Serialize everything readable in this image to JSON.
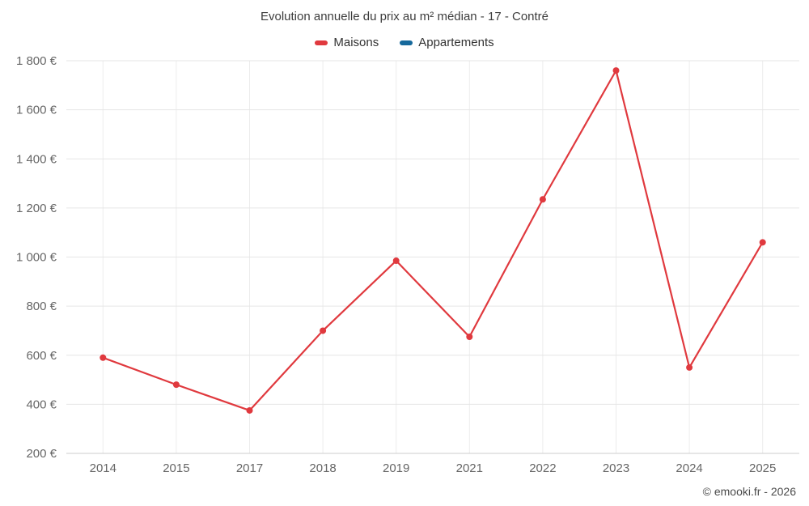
{
  "chart": {
    "title": "Evolution annuelle du prix au m² médian - 17 - Contré",
    "footer": "© emooki.fr - 2026"
  },
  "chart_data": {
    "type": "line",
    "title": "Evolution annuelle du prix au m² médian - 17 - Contré",
    "categories": [
      "2014",
      "2015",
      "2017",
      "2018",
      "2019",
      "2021",
      "2022",
      "2023",
      "2024",
      "2025"
    ],
    "series": [
      {
        "name": "Maisons",
        "color": "#e0393e",
        "values": [
          590,
          480,
          375,
          700,
          985,
          675,
          1235,
          1760,
          550,
          1060
        ]
      },
      {
        "name": "Appartements",
        "color": "#16699c",
        "values": []
      }
    ],
    "xlabel": "",
    "ylabel": "",
    "ylim": [
      200,
      1800
    ],
    "y_ticks": [
      200,
      400,
      600,
      800,
      1000,
      1200,
      1400,
      1600,
      1800
    ],
    "y_tick_suffix": " €",
    "grid": true,
    "legend_position": "top"
  }
}
